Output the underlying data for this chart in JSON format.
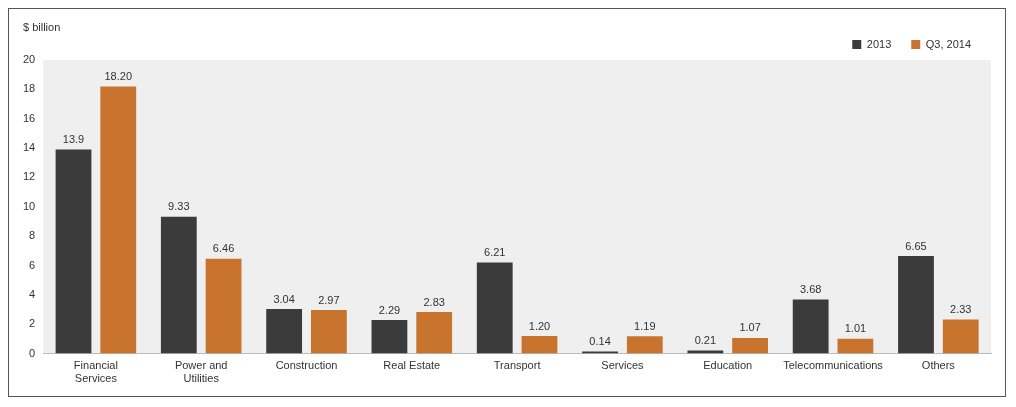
{
  "chart_data": {
    "type": "bar",
    "ylabel": "$ billion",
    "categories": [
      "Financial Services",
      "Power and Utilities",
      "Construction",
      "Real Estate",
      "Transport",
      "Services",
      "Education",
      "Telecommunications",
      "Others"
    ],
    "series": [
      {
        "name": "2013",
        "color": "#3b3b3b",
        "values": [
          13.9,
          9.33,
          3.04,
          2.29,
          6.21,
          0.14,
          0.21,
          3.68,
          6.65
        ],
        "value_labels": [
          "13.9",
          "9.33",
          "3.04",
          "2.29",
          "6.21",
          "0.14",
          "0.21",
          "3.68",
          "6.65"
        ]
      },
      {
        "name": "Q3, 2014",
        "color": "#c8742f",
        "values": [
          18.2,
          6.46,
          2.97,
          2.83,
          1.2,
          1.19,
          1.07,
          1.01,
          2.33
        ],
        "value_labels": [
          "18.20",
          "6.46",
          "2.97",
          "2.83",
          "1.20",
          "1.19",
          "1.07",
          "1.01",
          "2.33"
        ]
      }
    ],
    "ylim": [
      0,
      20
    ],
    "yticks": [
      0,
      2,
      4,
      6,
      8,
      10,
      12,
      14,
      16,
      18,
      20
    ],
    "grid": false,
    "legend": "top right"
  }
}
